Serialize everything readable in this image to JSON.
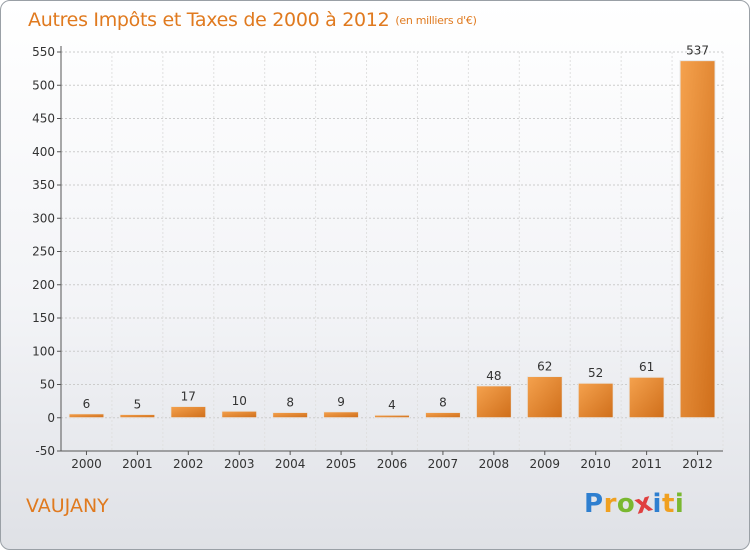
{
  "header": {
    "title": "Autres Impôts et Taxes de 2000 à 2012",
    "subtitle": "(en milliers d'€)"
  },
  "footer": {
    "place": "VAUJANY",
    "logo_letters": [
      "P",
      "r",
      "o",
      "x",
      "i",
      "t",
      "i"
    ],
    "logo_colors": [
      "#2e7fd0",
      "#f0a020",
      "#7ab830",
      "#e04040",
      "#2e7fd0",
      "#f0a020",
      "#7ab830"
    ]
  },
  "colors": {
    "bar_light": "#f5a24e",
    "bar_dark": "#cf6e1a",
    "grid": "#cccccc",
    "axis_text": "#333333",
    "title": "#e07a1f"
  },
  "chart_data": {
    "type": "bar",
    "title": "Autres Impôts et Taxes de 2000 à 2012",
    "subtitle": "(en milliers d'€)",
    "categories": [
      "2000",
      "2001",
      "2002",
      "2003",
      "2004",
      "2005",
      "2006",
      "2007",
      "2008",
      "2009",
      "2010",
      "2011",
      "2012"
    ],
    "values": [
      6,
      5,
      17,
      10,
      8,
      9,
      4,
      8,
      48,
      62,
      52,
      61,
      537
    ],
    "ylim": [
      -50,
      550
    ],
    "yticks": [
      -50,
      0,
      50,
      100,
      150,
      200,
      250,
      300,
      350,
      400,
      450,
      500,
      550
    ],
    "grid": true,
    "xlabel": "",
    "ylabel": ""
  }
}
